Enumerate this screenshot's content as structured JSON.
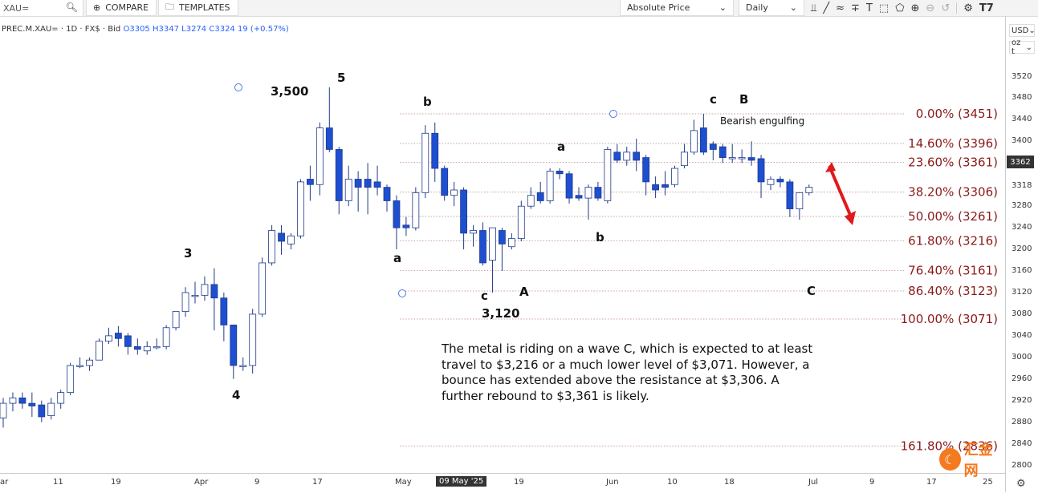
{
  "toolbar": {
    "symbol": "XAU=",
    "compare_label": "COMPARE",
    "templates_label": "TEMPLATES",
    "price_mode": "Absolute Price",
    "interval": "Daily"
  },
  "info": {
    "name": "PREC.M.XAU= · 1D · FX$ · Bid",
    "open": "O3305",
    "high": "H3347",
    "low": "L3274",
    "close": "C3324",
    "change": "19 (+0.57%)"
  },
  "right_axis": {
    "currency": "USD",
    "unit": "oz t",
    "last_price": "3362",
    "ticks": [
      "3520",
      "3480",
      "3440",
      "3400",
      "3360",
      "3318",
      "3280",
      "3240",
      "3200",
      "3160",
      "3120",
      "3080",
      "3040",
      "3000",
      "2960",
      "2920",
      "2880",
      "2840",
      "2800"
    ]
  },
  "bottom_axis": {
    "ticks": [
      "ar",
      "11",
      "19",
      "Apr",
      "9",
      "17",
      "May",
      "09 May '25",
      "19",
      "Jun",
      "10",
      "18",
      "Jul",
      "9",
      "17",
      "25"
    ]
  },
  "chart_data": {
    "type": "candlestick",
    "fib_levels": [
      {
        "label": "0.00% (3451)",
        "price": 3451
      },
      {
        "label": "14.60% (3396)",
        "price": 3396
      },
      {
        "label": "23.60% (3361)",
        "price": 3361
      },
      {
        "label": "38.20% (3306)",
        "price": 3306
      },
      {
        "label": "50.00% (3261)",
        "price": 3261
      },
      {
        "label": "61.80% (3216)",
        "price": 3216
      },
      {
        "label": "76.40% (3161)",
        "price": 3161
      },
      {
        "label": "86.40% (3123)",
        "price": 3123
      },
      {
        "label": "100.00% (3071)",
        "price": 3071
      },
      {
        "label": "161.80% (2836)",
        "price": 2836
      }
    ],
    "candles": [
      {
        "d": "Mar 4",
        "o": 2888,
        "h": 2925,
        "l": 2870,
        "c": 2915
      },
      {
        "d": "Mar 5",
        "o": 2915,
        "h": 2935,
        "l": 2900,
        "c": 2925
      },
      {
        "d": "Mar 6",
        "o": 2925,
        "h": 2935,
        "l": 2905,
        "c": 2915
      },
      {
        "d": "Mar 7",
        "o": 2915,
        "h": 2935,
        "l": 2890,
        "c": 2910
      },
      {
        "d": "Mar 10",
        "o": 2912,
        "h": 2920,
        "l": 2880,
        "c": 2890
      },
      {
        "d": "Mar 11",
        "o": 2892,
        "h": 2925,
        "l": 2885,
        "c": 2915
      },
      {
        "d": "Mar 12",
        "o": 2915,
        "h": 2940,
        "l": 2905,
        "c": 2935
      },
      {
        "d": "Mar 13",
        "o": 2935,
        "h": 2990,
        "l": 2930,
        "c": 2985
      },
      {
        "d": "Mar 14",
        "o": 2985,
        "h": 3000,
        "l": 2980,
        "c": 2985
      },
      {
        "d": "Mar 17",
        "o": 2985,
        "h": 3000,
        "l": 2975,
        "c": 2995
      },
      {
        "d": "Mar 18",
        "o": 2995,
        "h": 3035,
        "l": 2995,
        "c": 3030
      },
      {
        "d": "Mar 19",
        "o": 3030,
        "h": 3055,
        "l": 3025,
        "c": 3040
      },
      {
        "d": "Mar 20",
        "o": 3045,
        "h": 3058,
        "l": 3020,
        "c": 3035
      },
      {
        "d": "Mar 21",
        "o": 3040,
        "h": 3045,
        "l": 3005,
        "c": 3020
      },
      {
        "d": "Mar 24",
        "o": 3020,
        "h": 3035,
        "l": 3005,
        "c": 3015
      },
      {
        "d": "Mar 25",
        "o": 3012,
        "h": 3030,
        "l": 3005,
        "c": 3020
      },
      {
        "d": "Mar 26",
        "o": 3020,
        "h": 3035,
        "l": 3015,
        "c": 3020
      },
      {
        "d": "Mar 27",
        "o": 3020,
        "h": 3060,
        "l": 3015,
        "c": 3055
      },
      {
        "d": "Mar 28",
        "o": 3055,
        "h": 3085,
        "l": 3050,
        "c": 3085
      },
      {
        "d": "Mar 31",
        "o": 3085,
        "h": 3130,
        "l": 3075,
        "c": 3120
      },
      {
        "d": "Apr 1",
        "o": 3115,
        "h": 3140,
        "l": 3100,
        "c": 3115
      },
      {
        "d": "Apr 2",
        "o": 3115,
        "h": 3150,
        "l": 3105,
        "c": 3135
      },
      {
        "d": "Apr 3",
        "o": 3135,
        "h": 3165,
        "l": 3050,
        "c": 3110
      },
      {
        "d": "Apr 4",
        "o": 3110,
        "h": 3120,
        "l": 3030,
        "c": 3060
      },
      {
        "d": "Apr 7",
        "o": 3060,
        "h": 3060,
        "l": 2960,
        "c": 2985
      },
      {
        "d": "Apr 8",
        "o": 2985,
        "h": 3000,
        "l": 2975,
        "c": 2985
      },
      {
        "d": "Apr 9",
        "o": 2985,
        "h": 3090,
        "l": 2970,
        "c": 3080
      },
      {
        "d": "Apr 10",
        "o": 3080,
        "h": 3185,
        "l": 3075,
        "c": 3175
      },
      {
        "d": "Apr 11",
        "o": 3175,
        "h": 3245,
        "l": 3170,
        "c": 3235
      },
      {
        "d": "Apr 14",
        "o": 3230,
        "h": 3245,
        "l": 3190,
        "c": 3215
      },
      {
        "d": "Apr 15",
        "o": 3210,
        "h": 3230,
        "l": 3200,
        "c": 3225
      },
      {
        "d": "Apr 16",
        "o": 3225,
        "h": 3330,
        "l": 3220,
        "c": 3325
      },
      {
        "d": "Apr 17",
        "o": 3330,
        "h": 3355,
        "l": 3290,
        "c": 3320
      },
      {
        "d": "Apr 18",
        "o": 3320,
        "h": 3435,
        "l": 3300,
        "c": 3425
      },
      {
        "d": "Apr 21",
        "o": 3425,
        "h": 3500,
        "l": 3380,
        "c": 3385
      },
      {
        "d": "Apr 22",
        "o": 3385,
        "h": 3390,
        "l": 3265,
        "c": 3290
      },
      {
        "d": "Apr 23",
        "o": 3290,
        "h": 3355,
        "l": 3280,
        "c": 3330
      },
      {
        "d": "Apr 24",
        "o": 3330,
        "h": 3345,
        "l": 3270,
        "c": 3315
      },
      {
        "d": "Apr 25",
        "o": 3330,
        "h": 3360,
        "l": 3265,
        "c": 3315
      },
      {
        "d": "Apr 28",
        "o": 3325,
        "h": 3355,
        "l": 3300,
        "c": 3315
      },
      {
        "d": "Apr 29",
        "o": 3315,
        "h": 3320,
        "l": 3270,
        "c": 3290
      },
      {
        "d": "Apr 30",
        "o": 3290,
        "h": 3300,
        "l": 3200,
        "c": 3240
      },
      {
        "d": "May 1",
        "o": 3245,
        "h": 3260,
        "l": 3225,
        "c": 3240
      },
      {
        "d": "May 2",
        "o": 3240,
        "h": 3315,
        "l": 3235,
        "c": 3305
      },
      {
        "d": "May 5",
        "o": 3305,
        "h": 3430,
        "l": 3295,
        "c": 3415
      },
      {
        "d": "May 6",
        "o": 3415,
        "h": 3435,
        "l": 3325,
        "c": 3350
      },
      {
        "d": "May 7",
        "o": 3350,
        "h": 3355,
        "l": 3290,
        "c": 3300
      },
      {
        "d": "May 8",
        "o": 3300,
        "h": 3325,
        "l": 3280,
        "c": 3310
      },
      {
        "d": "May 9",
        "o": 3310,
        "h": 3315,
        "l": 3200,
        "c": 3230
      },
      {
        "d": "May 12",
        "o": 3230,
        "h": 3245,
        "l": 3205,
        "c": 3235
      },
      {
        "d": "May 13",
        "o": 3235,
        "h": 3250,
        "l": 3170,
        "c": 3175
      },
      {
        "d": "May 14",
        "o": 3180,
        "h": 3240,
        "l": 3120,
        "c": 3240
      },
      {
        "d": "May 15",
        "o": 3235,
        "h": 3240,
        "l": 3160,
        "c": 3210
      },
      {
        "d": "May 16",
        "o": 3205,
        "h": 3230,
        "l": 3200,
        "c": 3220
      },
      {
        "d": "May 19",
        "o": 3220,
        "h": 3290,
        "l": 3215,
        "c": 3280
      },
      {
        "d": "May 20",
        "o": 3280,
        "h": 3315,
        "l": 3275,
        "c": 3300
      },
      {
        "d": "May 21",
        "o": 3305,
        "h": 3325,
        "l": 3285,
        "c": 3290
      },
      {
        "d": "May 22",
        "o": 3290,
        "h": 3350,
        "l": 3285,
        "c": 3345
      },
      {
        "d": "May 23",
        "o": 3345,
        "h": 3350,
        "l": 3330,
        "c": 3340
      },
      {
        "d": "May 26",
        "o": 3340,
        "h": 3345,
        "l": 3285,
        "c": 3295
      },
      {
        "d": "May 27",
        "o": 3300,
        "h": 3315,
        "l": 3290,
        "c": 3295
      },
      {
        "d": "May 28",
        "o": 3295,
        "h": 3320,
        "l": 3255,
        "c": 3315
      },
      {
        "d": "May 29",
        "o": 3315,
        "h": 3325,
        "l": 3290,
        "c": 3295
      },
      {
        "d": "May 30",
        "o": 3290,
        "h": 3390,
        "l": 3285,
        "c": 3385
      },
      {
        "d": "Jun 2",
        "o": 3380,
        "h": 3395,
        "l": 3360,
        "c": 3365
      },
      {
        "d": "Jun 3",
        "o": 3365,
        "h": 3390,
        "l": 3355,
        "c": 3380
      },
      {
        "d": "Jun 4",
        "o": 3380,
        "h": 3405,
        "l": 3345,
        "c": 3365
      },
      {
        "d": "Jun 5",
        "o": 3370,
        "h": 3375,
        "l": 3300,
        "c": 3325
      },
      {
        "d": "Jun 6",
        "o": 3320,
        "h": 3335,
        "l": 3295,
        "c": 3310
      },
      {
        "d": "Jun 9",
        "o": 3320,
        "h": 3345,
        "l": 3300,
        "c": 3315
      },
      {
        "d": "Jun 10",
        "o": 3320,
        "h": 3355,
        "l": 3315,
        "c": 3350
      },
      {
        "d": "Jun 11",
        "o": 3355,
        "h": 3395,
        "l": 3350,
        "c": 3380
      },
      {
        "d": "Jun 12",
        "o": 3380,
        "h": 3440,
        "l": 3375,
        "c": 3420
      },
      {
        "d": "Jun 13",
        "o": 3425,
        "h": 3451,
        "l": 3375,
        "c": 3380
      },
      {
        "d": "Jun 16",
        "o": 3395,
        "h": 3400,
        "l": 3365,
        "c": 3385
      },
      {
        "d": "Jun 17",
        "o": 3390,
        "h": 3395,
        "l": 3360,
        "c": 3370
      },
      {
        "d": "Jun 18",
        "o": 3370,
        "h": 3395,
        "l": 3360,
        "c": 3370
      },
      {
        "d": "Jun 19",
        "o": 3370,
        "h": 3385,
        "l": 3360,
        "c": 3370
      },
      {
        "d": "Jun 20",
        "o": 3370,
        "h": 3400,
        "l": 3355,
        "c": 3365
      },
      {
        "d": "Jun 23",
        "o": 3368,
        "h": 3375,
        "l": 3295,
        "c": 3325
      },
      {
        "d": "Jun 24",
        "o": 3320,
        "h": 3335,
        "l": 3310,
        "c": 3330
      },
      {
        "d": "Jun 25",
        "o": 3330,
        "h": 3335,
        "l": 3315,
        "c": 3325
      },
      {
        "d": "Jun 26",
        "o": 3325,
        "h": 3330,
        "l": 3260,
        "c": 3275
      },
      {
        "d": "Jun 27",
        "o": 3275,
        "h": 3305,
        "l": 3255,
        "c": 3305
      },
      {
        "d": "Jun 30",
        "o": 3305,
        "h": 3320,
        "l": 3300,
        "c": 3315
      }
    ]
  },
  "annotations": {
    "wave5": "5",
    "peak": "3,500",
    "wave3": "3",
    "wave4": "4",
    "b_top": "b",
    "a_left": "a",
    "c_low": "c",
    "low_value": "3,120",
    "A": "A",
    "a_mid": "a",
    "b_mid": "b",
    "c_top": "c",
    "B": "B",
    "C": "C",
    "bearish": "Bearish engulfing"
  },
  "commentary": "The metal is riding on a wave C, which is expected to at least travel to $3,216 or a much lower level of $3,071. However, a bounce has extended above the resistance at $3,306. A further rebound to $3,361 is likely.",
  "watermark": "汇金网",
  "colors": {
    "bear": "#1e4fd1",
    "bull": "#ffffff",
    "fib": "#8b1a1a",
    "arrow": "#e0191d"
  }
}
